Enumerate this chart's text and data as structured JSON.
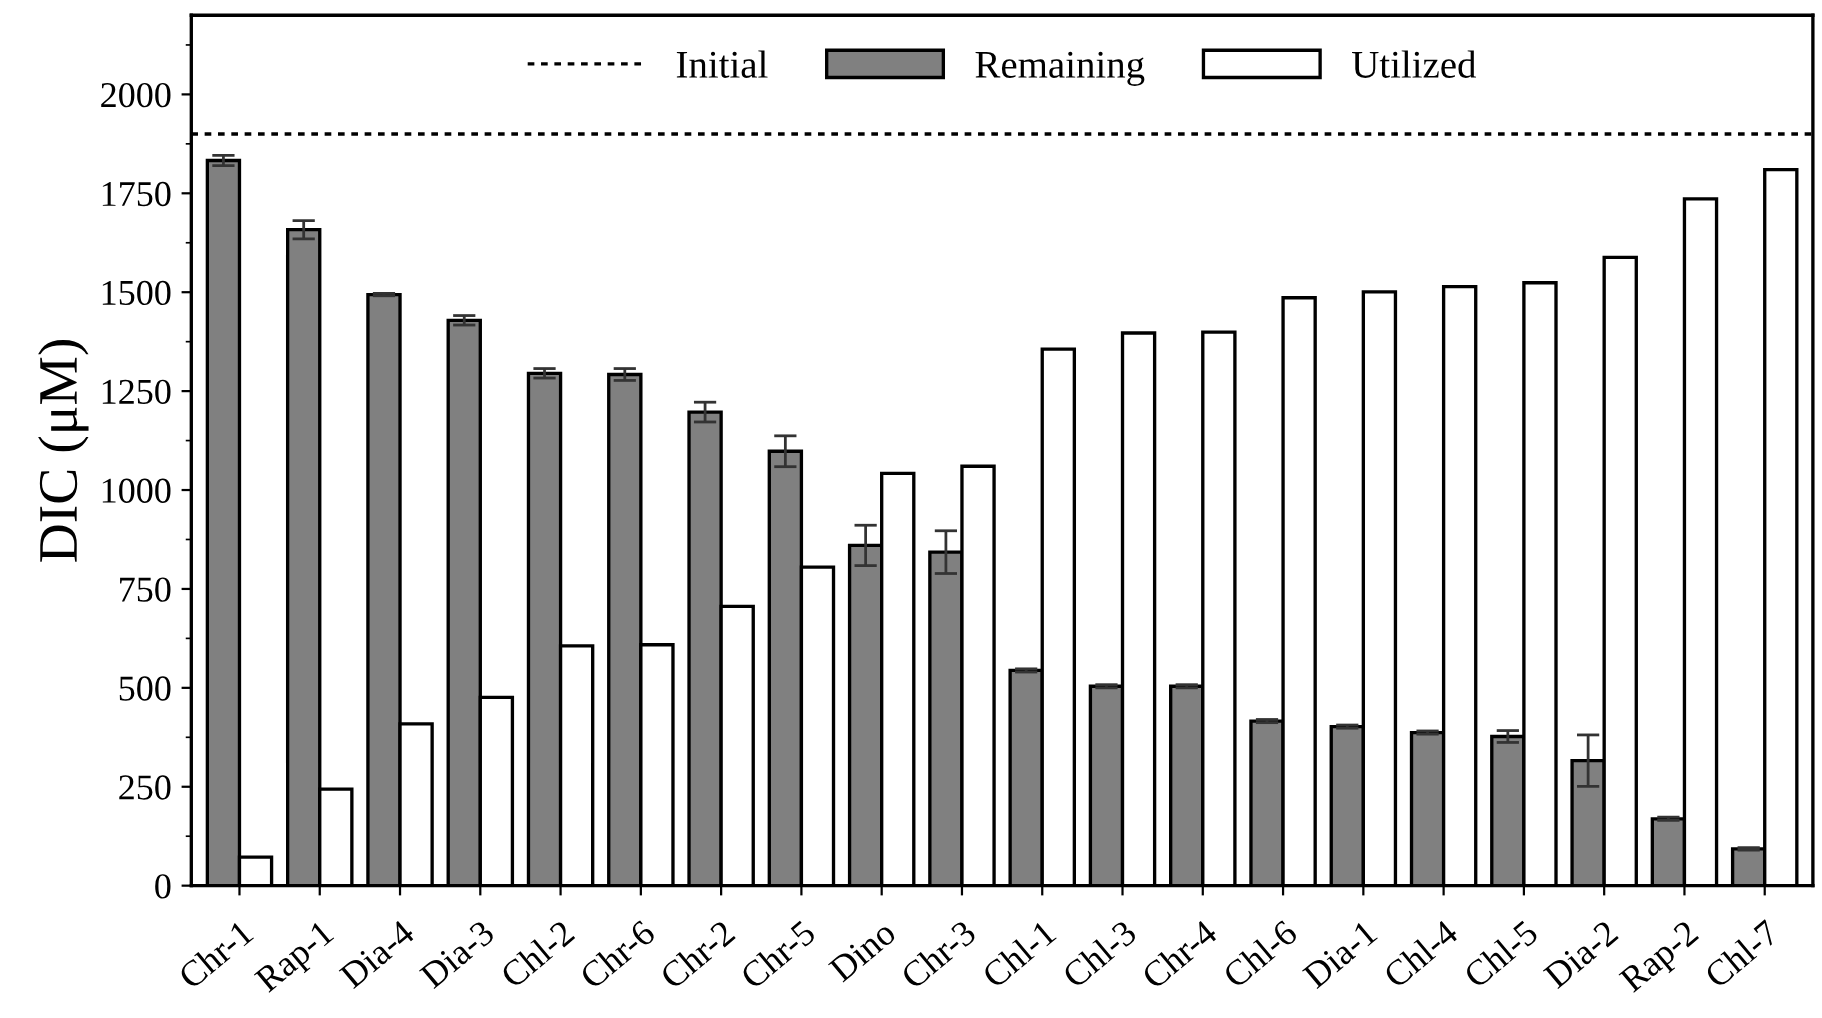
{
  "chart_data": {
    "type": "bar",
    "ylabel": "DIC (μM)",
    "categories": [
      "Chr-1",
      "Rap-1",
      "Dia-4",
      "Dia-3",
      "Chl-2",
      "Chr-6",
      "Chr-2",
      "Chr-5",
      "Dino",
      "Chr-3",
      "Chl-1",
      "Chl-3",
      "Chr-4",
      "Chl-6",
      "Dia-1",
      "Chl-4",
      "Chl-5",
      "Dia-2",
      "Rap-2",
      "Chl-7"
    ],
    "series": [
      {
        "name": "Remaining",
        "color": "#808080",
        "values": [
          1833,
          1658,
          1494,
          1429,
          1295,
          1292,
          1197,
          1098,
          860,
          843,
          544,
          504,
          504,
          416,
          402,
          387,
          377,
          316,
          169,
          93
        ],
        "errors": [
          13,
          23,
          3,
          12,
          12,
          15,
          25,
          39,
          51,
          54,
          4,
          4,
          4,
          4,
          4,
          4,
          15,
          65,
          4,
          3
        ]
      },
      {
        "name": "Utilized",
        "color": "#ffffff",
        "values": [
          72,
          244,
          409,
          476,
          606,
          609,
          706,
          805,
          1042,
          1060,
          1356,
          1397,
          1399,
          1486,
          1501,
          1514,
          1524,
          1588,
          1736,
          1810
        ]
      }
    ],
    "ref_lines": [
      {
        "axis": "y",
        "value": 1900,
        "label": "Initial",
        "color": "#000000",
        "line_style": "dotted"
      }
    ],
    "ylim": [
      0,
      2200
    ],
    "yticks": [
      0,
      250,
      500,
      750,
      1000,
      1250,
      1500,
      1750,
      2000
    ],
    "legend": "top",
    "grid": false
  }
}
